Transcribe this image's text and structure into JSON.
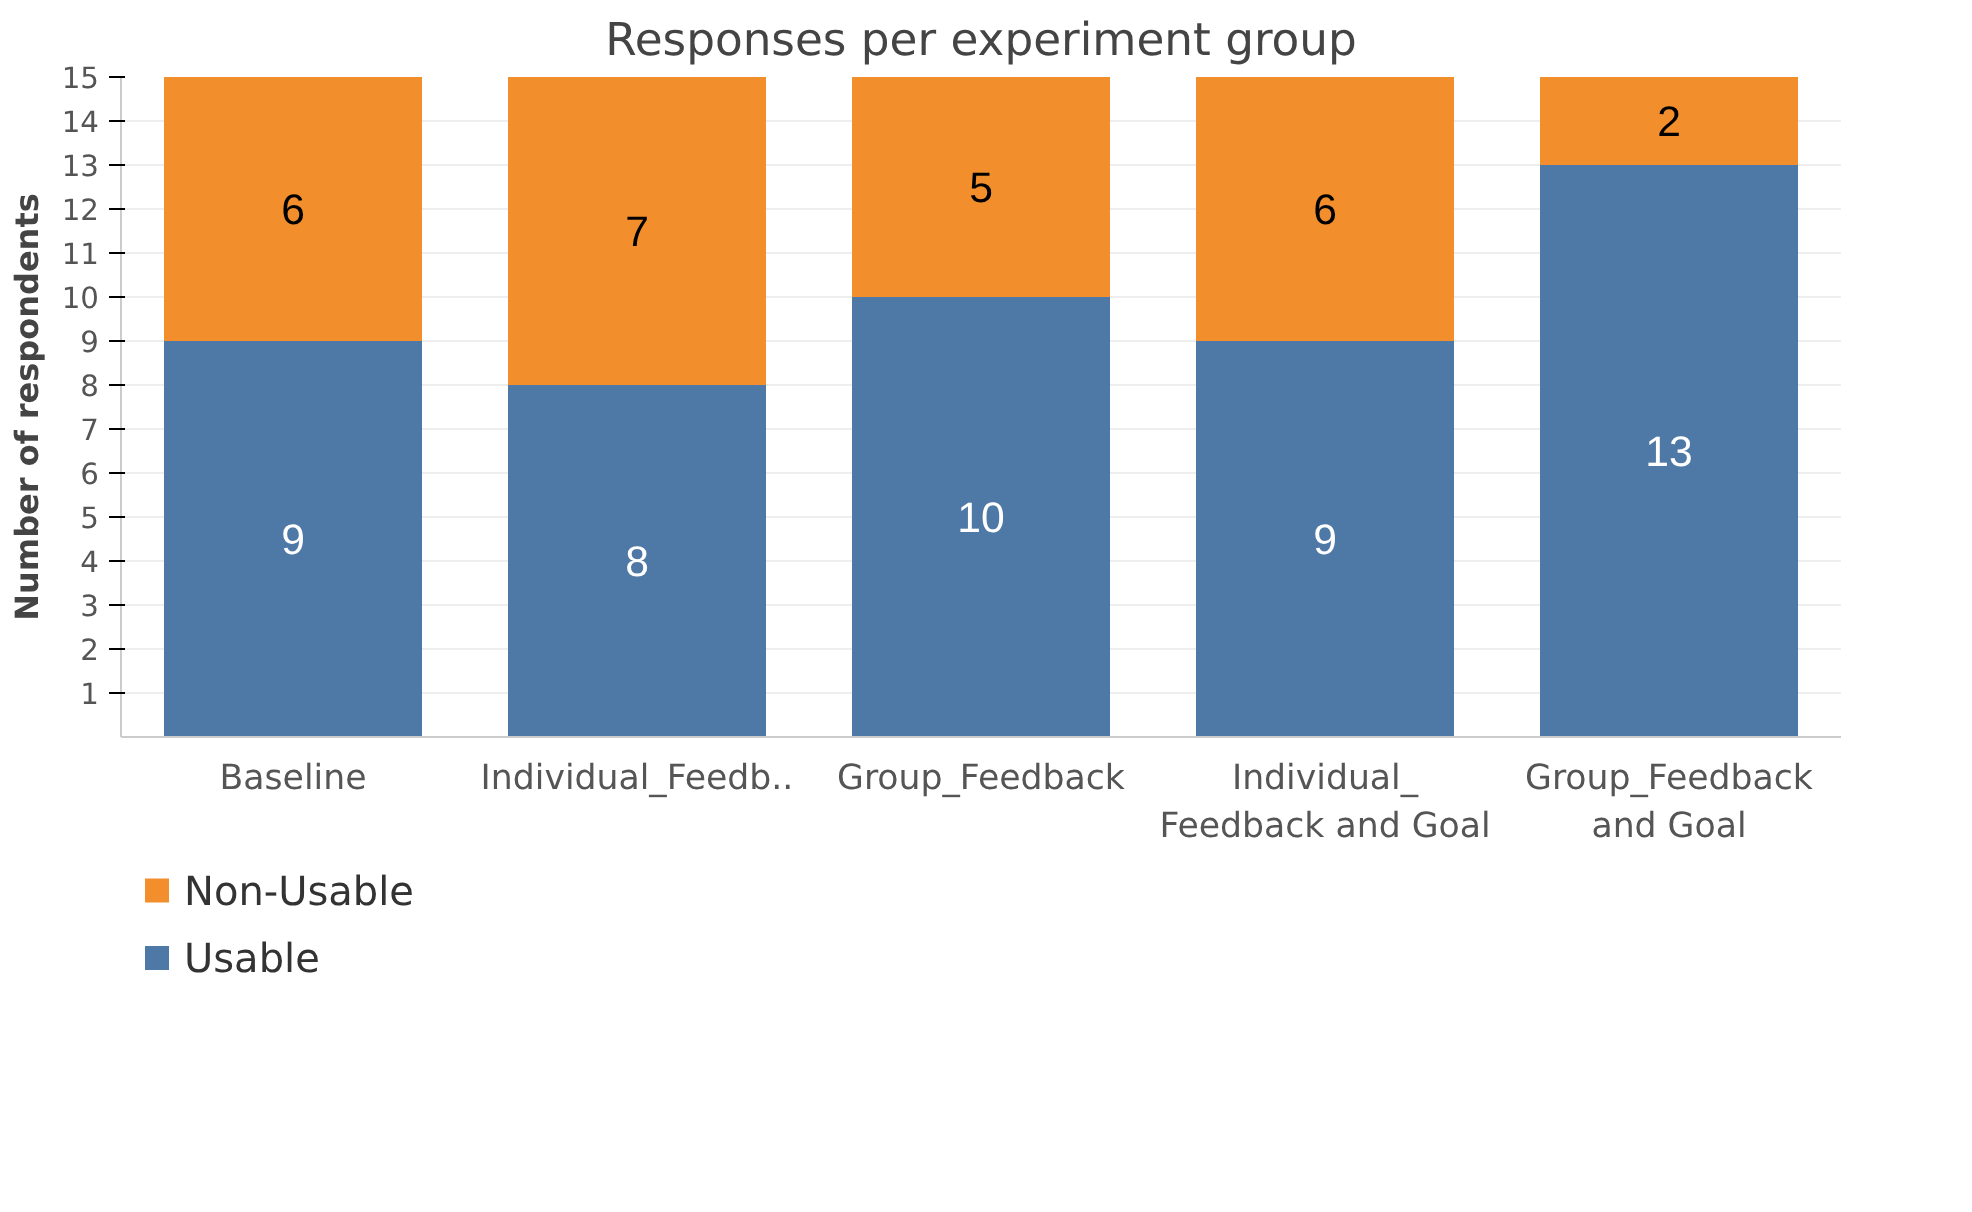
{
  "chart_data": {
    "type": "bar",
    "title": "Responses per experiment group",
    "ylabel": "Number of respondents",
    "categories": [
      "Baseline",
      "Individual_Feedb..",
      "Group_Feedback",
      "Individual_\nFeedback and Goal",
      "Group_Feedback\nand Goal"
    ],
    "stacked": true,
    "series": [
      {
        "name": "Usable",
        "color": "#4e79a7",
        "values": [
          9,
          8,
          10,
          9,
          13
        ]
      },
      {
        "name": "Non-Usable",
        "color": "#f28e2b",
        "values": [
          6,
          7,
          5,
          6,
          2
        ]
      }
    ],
    "ylim": [
      0,
      15
    ],
    "yticks": [
      1,
      2,
      3,
      4,
      5,
      6,
      7,
      8,
      9,
      10,
      11,
      12,
      13,
      14,
      15
    ],
    "data_labels": true,
    "grid": "y",
    "legend": "bottom left"
  }
}
